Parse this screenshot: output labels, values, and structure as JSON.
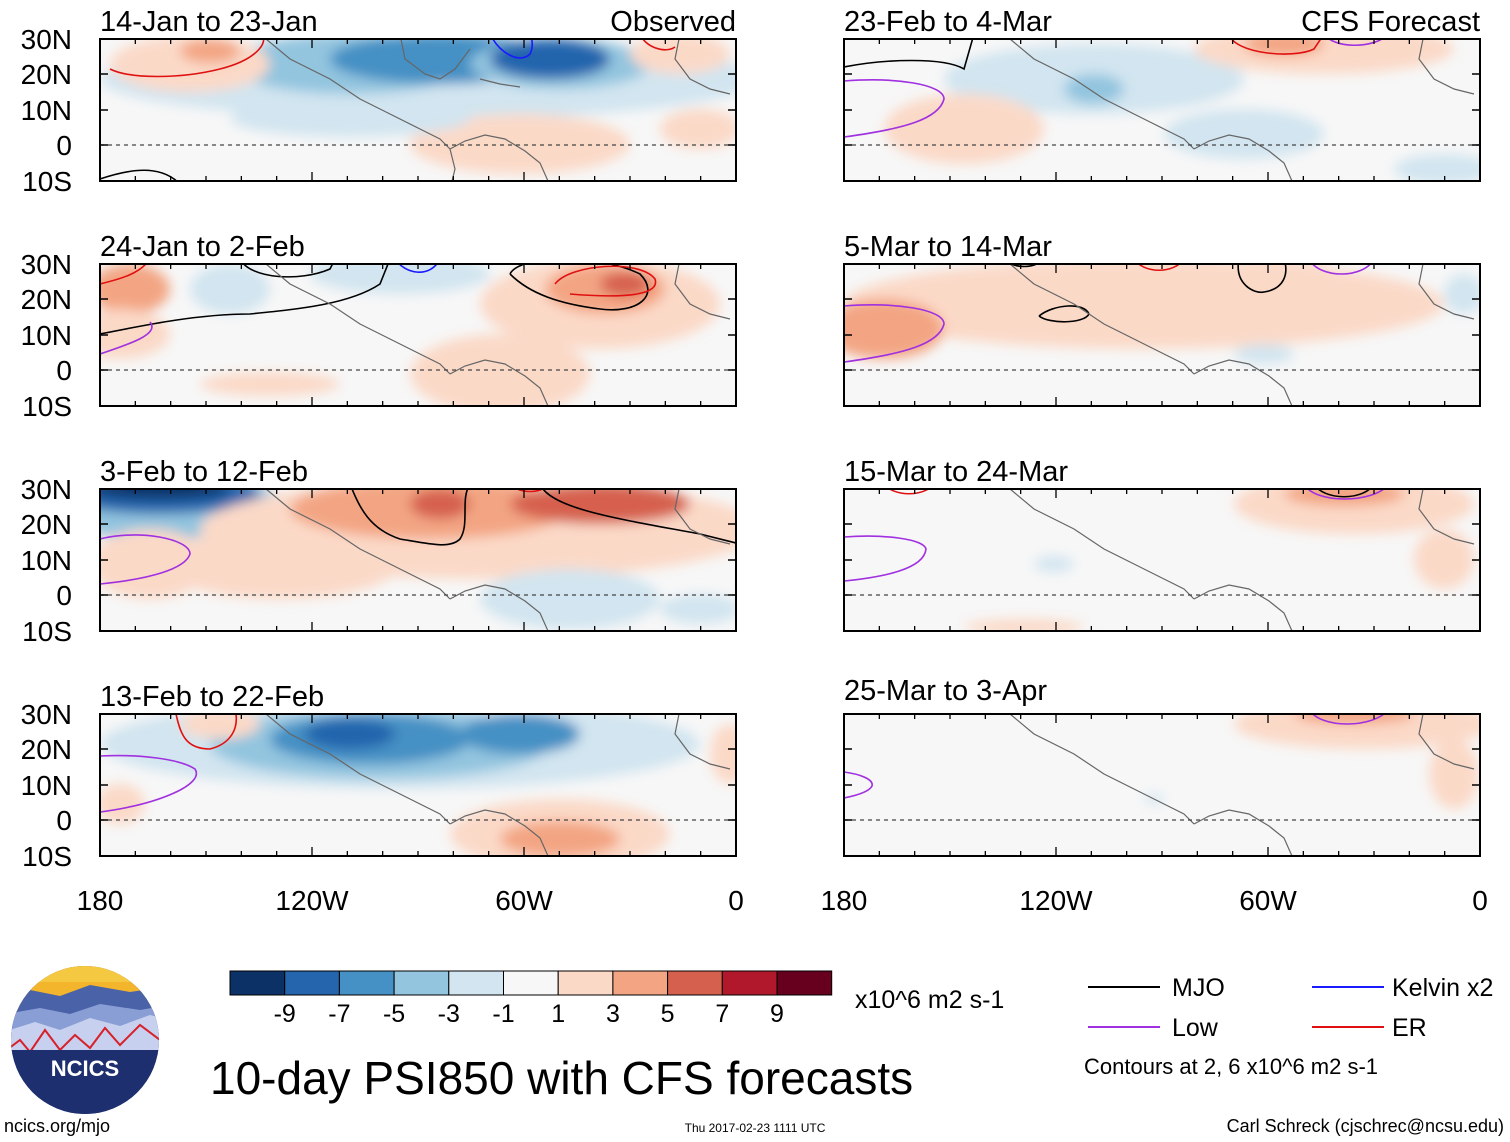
{
  "panels": [
    {
      "title": "14-Jan to 23-Jan",
      "tag": "Observed"
    },
    {
      "title": "24-Jan to 2-Feb",
      "tag": ""
    },
    {
      "title": "3-Feb to 12-Feb",
      "tag": ""
    },
    {
      "title": "13-Feb to 22-Feb",
      "tag": ""
    },
    {
      "title": "23-Feb to 4-Mar",
      "tag": "CFS Forecast"
    },
    {
      "title": "5-Mar to 14-Mar",
      "tag": ""
    },
    {
      "title": "15-Mar to 24-Mar",
      "tag": ""
    },
    {
      "title": "25-Mar to 3-Apr",
      "tag": ""
    }
  ],
  "lat_labels": [
    "30N",
    "20N",
    "10N",
    "0",
    "10S"
  ],
  "lon_labels": [
    "180",
    "120W",
    "60W",
    "0"
  ],
  "colorbar": {
    "colors": [
      "#0b3166",
      "#2465ad",
      "#4590c4",
      "#93c5df",
      "#d2e5f0",
      "#f7f7f7",
      "#fbd9c7",
      "#f3a583",
      "#d6604e",
      "#b2182b",
      "#67001f"
    ],
    "labels": [
      "-9",
      "-7",
      "-5",
      "-3",
      "-1",
      "1",
      "3",
      "5",
      "7",
      "9"
    ],
    "units": "x10^6 m2 s-1"
  },
  "legend": {
    "items": [
      {
        "label": "MJO",
        "color": "#000000"
      },
      {
        "label": "Kelvin x2",
        "color": "#1a1aff"
      },
      {
        "label": "Low",
        "color": "#a030e0"
      },
      {
        "label": "ER",
        "color": "#e01010"
      }
    ],
    "contours_note": "Contours at 2, 6 x10^6 m2 s-1"
  },
  "footer": {
    "main_title": "10-day PSI850 with CFS forecasts",
    "website": "ncics.org/mjo",
    "timestamp": "Thu 2017-02-23 1111 UTC",
    "author": "Carl Schreck (cjschrec@ncsu.edu)",
    "logo_text": "NCICS"
  }
}
